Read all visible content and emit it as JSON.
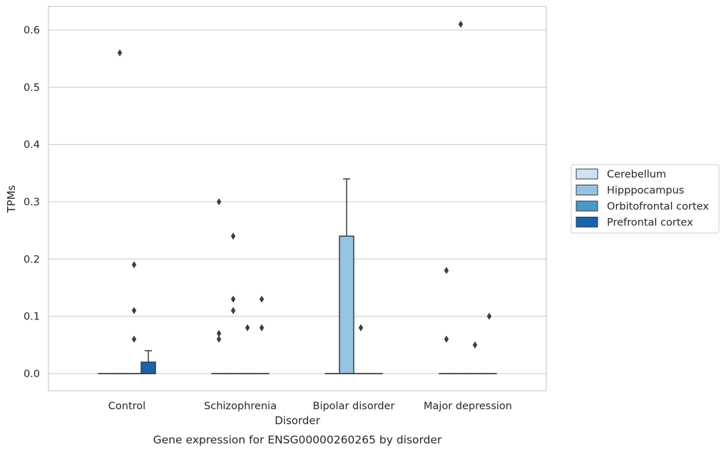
{
  "chart_data": {
    "type": "box",
    "title": "",
    "caption": "Gene expression for ENSG00000260265 by disorder",
    "xlabel": "Disorder",
    "ylabel": "TPMs",
    "ylim": [
      -0.03,
      0.64
    ],
    "yticks": [
      0.0,
      0.1,
      0.2,
      0.3,
      0.4,
      0.5,
      0.6
    ],
    "ytick_labels": [
      "0.0",
      "0.1",
      "0.2",
      "0.3",
      "0.4",
      "0.5",
      "0.6"
    ],
    "grid": "horizontal",
    "legend_position": "right",
    "categories": [
      "Control",
      "Schizophrenia",
      "Bipolar disorder",
      "Major depression"
    ],
    "series": [
      {
        "name": "Cerebellum",
        "color": "#d0e1f2",
        "boxes": [
          {
            "q1": 0.0,
            "median": 0.0,
            "q3": 0.0,
            "whislo": 0.0,
            "whishi": 0.0,
            "fliers": []
          },
          {
            "q1": 0.0,
            "median": 0.0,
            "q3": 0.0,
            "whislo": 0.0,
            "whishi": 0.0,
            "fliers": [
              0.3,
              0.07,
              0.06
            ]
          },
          {
            "q1": 0.0,
            "median": 0.0,
            "q3": 0.0,
            "whislo": 0.0,
            "whishi": 0.0,
            "fliers": []
          },
          {
            "q1": 0.0,
            "median": 0.0,
            "q3": 0.0,
            "whislo": 0.0,
            "whishi": 0.0,
            "fliers": [
              0.18,
              0.06
            ]
          }
        ]
      },
      {
        "name": "Hipppocampus",
        "color": "#94c4df",
        "boxes": [
          {
            "q1": 0.0,
            "median": 0.0,
            "q3": 0.0,
            "whislo": 0.0,
            "whishi": 0.0,
            "fliers": [
              0.56
            ]
          },
          {
            "q1": 0.0,
            "median": 0.0,
            "q3": 0.0,
            "whislo": 0.0,
            "whishi": 0.0,
            "fliers": [
              0.24,
              0.13,
              0.11
            ]
          },
          {
            "q1": 0.0,
            "median": 0.0,
            "q3": 0.24,
            "whislo": 0.0,
            "whishi": 0.34,
            "fliers": []
          },
          {
            "q1": 0.0,
            "median": 0.0,
            "q3": 0.0,
            "whislo": 0.0,
            "whishi": 0.0,
            "fliers": [
              0.61
            ]
          }
        ]
      },
      {
        "name": "Orbitofrontal cortex",
        "color": "#4a98c9",
        "boxes": [
          {
            "q1": 0.0,
            "median": 0.0,
            "q3": 0.0,
            "whislo": 0.0,
            "whishi": 0.0,
            "fliers": [
              0.19,
              0.11,
              0.06
            ]
          },
          {
            "q1": 0.0,
            "median": 0.0,
            "q3": 0.0,
            "whislo": 0.0,
            "whishi": 0.0,
            "fliers": [
              0.08
            ]
          },
          {
            "q1": 0.0,
            "median": 0.0,
            "q3": 0.0,
            "whislo": 0.0,
            "whishi": 0.0,
            "fliers": [
              0.08
            ]
          },
          {
            "q1": 0.0,
            "median": 0.0,
            "q3": 0.0,
            "whislo": 0.0,
            "whishi": 0.0,
            "fliers": [
              0.05
            ]
          }
        ]
      },
      {
        "name": "Prefrontal cortex",
        "color": "#1764ab",
        "boxes": [
          {
            "q1": 0.0,
            "median": 0.0,
            "q3": 0.02,
            "whislo": 0.0,
            "whishi": 0.04,
            "fliers": []
          },
          {
            "q1": 0.0,
            "median": 0.0,
            "q3": 0.0,
            "whislo": 0.0,
            "whishi": 0.0,
            "fliers": [
              0.13,
              0.08
            ]
          },
          {
            "q1": 0.0,
            "median": 0.0,
            "q3": 0.0,
            "whislo": 0.0,
            "whishi": 0.0,
            "fliers": []
          },
          {
            "q1": 0.0,
            "median": 0.0,
            "q3": 0.0,
            "whislo": 0.0,
            "whishi": 0.0,
            "fliers": [
              0.1
            ]
          }
        ]
      }
    ]
  },
  "style": {
    "grid_color": "#cccccc",
    "frame_color": "#cccccc",
    "line_color": "#3d3d3d",
    "flier_color": "#3d3d3d",
    "text_color": "#262626"
  }
}
